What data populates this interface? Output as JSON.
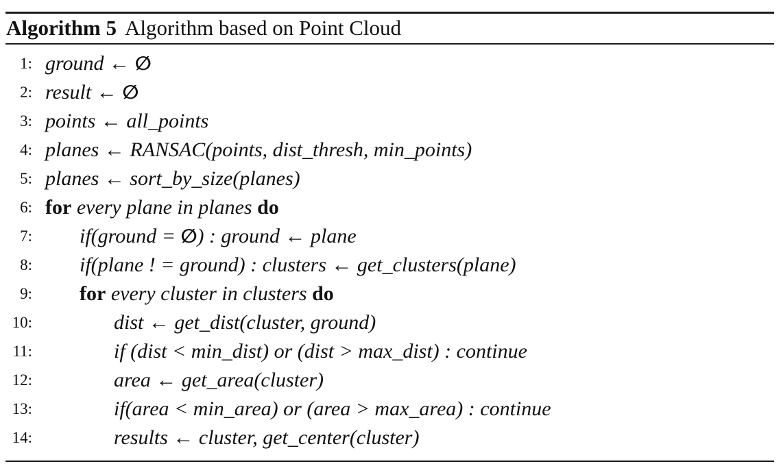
{
  "algorithm": {
    "label": "Algorithm 5",
    "title": "Algorithm based on Point Cloud",
    "lines": [
      {
        "no": "1:",
        "indent": 0,
        "parts": [
          {
            "t": "ground ← "
          },
          {
            "t": "∅",
            "k": "empty"
          }
        ]
      },
      {
        "no": "2:",
        "indent": 0,
        "parts": [
          {
            "t": "result ← "
          },
          {
            "t": "∅",
            "k": "empty"
          }
        ]
      },
      {
        "no": "3:",
        "indent": 0,
        "parts": [
          {
            "t": "points ← all_points"
          }
        ]
      },
      {
        "no": "4:",
        "indent": 0,
        "parts": [
          {
            "t": "planes ← RANSAC(points,  dist_thresh,  min_points)"
          }
        ]
      },
      {
        "no": "5:",
        "indent": 0,
        "parts": [
          {
            "t": "planes ← sort_by_size(planes)"
          }
        ]
      },
      {
        "no": "6:",
        "indent": 0,
        "parts": [
          {
            "t": "for",
            "k": "kw"
          },
          {
            "t": " every plane in planes "
          },
          {
            "t": "do",
            "k": "kw"
          }
        ]
      },
      {
        "no": "7:",
        "indent": 1,
        "parts": [
          {
            "t": "if(ground = "
          },
          {
            "t": "∅",
            "k": "empty"
          },
          {
            "t": ") :  ground ← plane"
          }
        ]
      },
      {
        "no": "8:",
        "indent": 1,
        "parts": [
          {
            "t": "if(plane ! = ground) :  clusters ← get_clusters(plane)"
          }
        ]
      },
      {
        "no": "9:",
        "indent": 1,
        "parts": [
          {
            "t": "for",
            "k": "kw"
          },
          {
            "t": " every cluster in clusters "
          },
          {
            "t": "do",
            "k": "kw"
          }
        ]
      },
      {
        "no": "10:",
        "indent": 2,
        "parts": [
          {
            "t": "dist ← get_dist(cluster, ground)"
          }
        ]
      },
      {
        "no": "11:",
        "indent": 2,
        "parts": [
          {
            "t": "if  (dist < min_dist)  or  (dist > max_dist) : continue"
          }
        ]
      },
      {
        "no": "12:",
        "indent": 2,
        "parts": [
          {
            "t": "area ← get_area(cluster)"
          }
        ]
      },
      {
        "no": "13:",
        "indent": 2,
        "parts": [
          {
            "t": "if(area < min_area)  or  (area > max_area) : continue"
          }
        ]
      },
      {
        "no": "14:",
        "indent": 2,
        "parts": [
          {
            "t": "results ← cluster,  get_center(cluster)"
          }
        ]
      }
    ]
  }
}
